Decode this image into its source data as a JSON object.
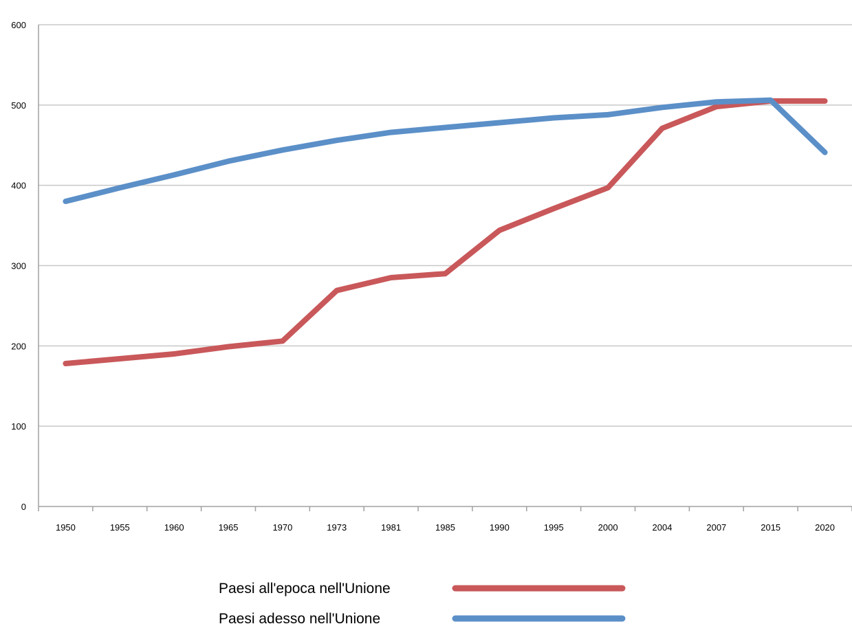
{
  "chart_data": {
    "type": "line",
    "categories": [
      "1950",
      "1955",
      "1960",
      "1965",
      "1970",
      "1973",
      "1981",
      "1985",
      "1990",
      "1995",
      "2000",
      "2004",
      "2007",
      "2015",
      "2020"
    ],
    "series": [
      {
        "name": "Paesi all'epoca nell'Unione",
        "color": "#c9585a",
        "values": [
          178,
          184,
          190,
          199,
          206,
          269,
          285,
          290,
          344,
          371,
          397,
          471,
          498,
          505,
          505
        ]
      },
      {
        "name": "Paesi adesso nell'Unione",
        "color": "#5b8fc8",
        "values": [
          380,
          397,
          413,
          430,
          444,
          456,
          466,
          472,
          478,
          484,
          488,
          497,
          504,
          506,
          441
        ]
      }
    ],
    "y_ticks": [
      "0",
      "100",
      "200",
      "300",
      "400",
      "500",
      "600"
    ],
    "ylim": [
      0,
      600
    ],
    "grid": true,
    "legend_position": "bottom-center"
  }
}
